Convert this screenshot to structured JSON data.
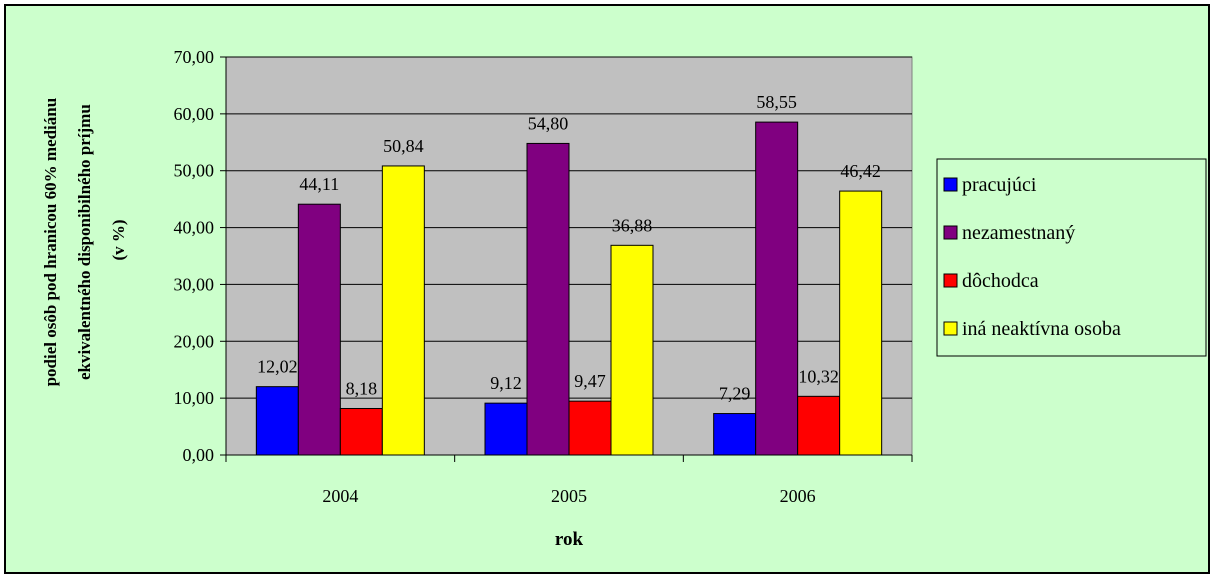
{
  "chart_data": {
    "type": "bar",
    "categories": [
      "2004",
      "2005",
      "2006"
    ],
    "series": [
      {
        "name": "pracujúci",
        "color": "#0000ff",
        "values": [
          12.02,
          9.12,
          7.29
        ],
        "labels": [
          "12,02",
          "9,12",
          "7,29"
        ]
      },
      {
        "name": "nezamestnaný",
        "color": "#800080",
        "values": [
          44.11,
          54.8,
          58.55
        ],
        "labels": [
          "44,11",
          "54,80",
          "58,55"
        ]
      },
      {
        "name": "dôchodca",
        "color": "#ff0000",
        "values": [
          8.18,
          9.47,
          10.32
        ],
        "labels": [
          "8,18",
          "9,47",
          "10,32"
        ]
      },
      {
        "name": "iná neaktívna osoba",
        "color": "#ffff00",
        "values": [
          50.84,
          36.88,
          46.42
        ],
        "labels": [
          "50,84",
          "36,88",
          "46,42"
        ]
      }
    ],
    "yticks": [
      "0,00",
      "10,00",
      "20,00",
      "30,00",
      "40,00",
      "50,00",
      "60,00",
      "70,00"
    ],
    "ylim": [
      0,
      70
    ],
    "ylabel_lines": [
      "podiel osôb pod hranicou 60% mediánu",
      "ekvivalentného disponibilného príjmu",
      "(v %)"
    ],
    "xlabel": "rok",
    "grid": true,
    "legend_position": "right",
    "plot_background": "#c0c0c0",
    "chart_background": "#ccffcc"
  }
}
